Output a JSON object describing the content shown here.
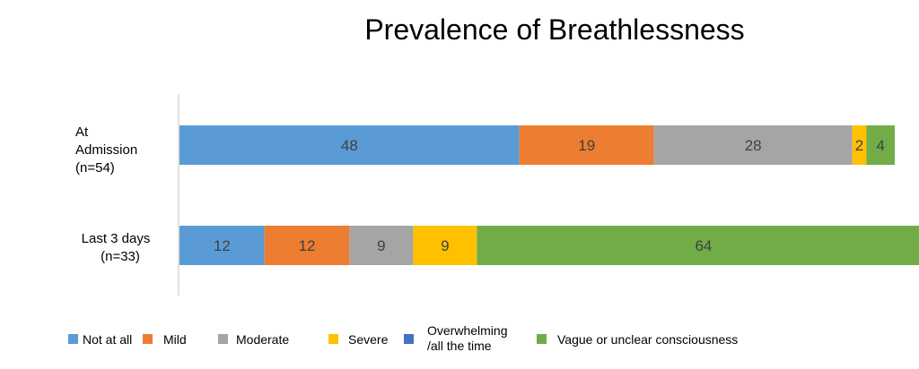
{
  "chart_data": {
    "type": "bar",
    "orientation": "horizontal",
    "stacked": true,
    "title": "Prevalence of Breathlessness",
    "categories": [
      [
        "At",
        "Admission",
        "(n=54)"
      ],
      [
        "Last 3 days",
        "(n=33)"
      ]
    ],
    "series": [
      {
        "name": "Not at all",
        "color": "#5B9BD5",
        "values": [
          48,
          12
        ]
      },
      {
        "name": "Mild",
        "color": "#ED7D31",
        "values": [
          19,
          12
        ]
      },
      {
        "name": "Moderate",
        "color": "#A5A5A5",
        "values": [
          28,
          9
        ]
      },
      {
        "name": "Severe",
        "color": "#FFC000",
        "values": [
          2,
          9
        ]
      },
      {
        "name": [
          "Overwhelming",
          "/all the time"
        ],
        "color": "#4472C4",
        "values": [
          0,
          0
        ]
      },
      {
        "name": "Vague or unclear consciousness",
        "color": "#70AD47",
        "values": [
          4,
          64
        ]
      }
    ],
    "xlim": [
      0,
      101
    ],
    "grid": false,
    "legend_position": "bottom"
  }
}
